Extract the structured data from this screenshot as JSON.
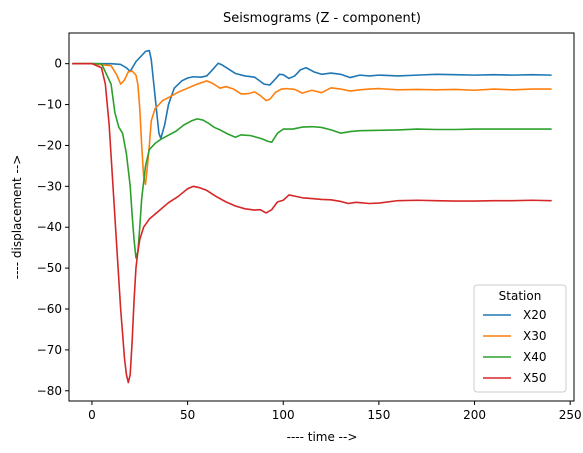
{
  "chart_data": {
    "type": "line",
    "title": "Seismograms (Z - component)",
    "xlabel": "---- time -->",
    "ylabel": "---- displacement -->",
    "xlim": [
      -12,
      252
    ],
    "ylim": [
      -82.5,
      7.5
    ],
    "xticks": [
      0,
      50,
      100,
      150,
      200,
      250
    ],
    "yticks": [
      0,
      -10,
      -20,
      -30,
      -40,
      -50,
      -60,
      -70,
      -80
    ],
    "grid": false,
    "legend": {
      "title": "Station",
      "placement": "lower-right"
    },
    "series": [
      {
        "name": "X20",
        "color": "#1f77b4",
        "x": [
          -10,
          0,
          10,
          15,
          18,
          20,
          23,
          26,
          28,
          30,
          31,
          33,
          35,
          36,
          38,
          40,
          43,
          47,
          50,
          53,
          57,
          60,
          63,
          66,
          68,
          71,
          75,
          80,
          85,
          90,
          93,
          96,
          98,
          100,
          103,
          106,
          109,
          112,
          116,
          120,
          125,
          130,
          135,
          140,
          145,
          150,
          160,
          170,
          180,
          190,
          200,
          210,
          220,
          230,
          240
        ],
        "y": [
          0,
          0,
          0,
          -0.2,
          -1,
          -1.9,
          0.5,
          2,
          3,
          3.2,
          1,
          -8,
          -17,
          -18.3,
          -15,
          -10,
          -6,
          -4.2,
          -3.5,
          -3.2,
          -3.3,
          -3,
          -1.5,
          0.1,
          -0.3,
          -1.2,
          -2.4,
          -3,
          -3.3,
          -5,
          -5.2,
          -3.7,
          -2.6,
          -2.7,
          -3.6,
          -3,
          -1.5,
          -1,
          -2,
          -2.6,
          -2.3,
          -2.6,
          -3.4,
          -2.8,
          -3,
          -2.8,
          -3,
          -2.8,
          -2.6,
          -2.7,
          -2.8,
          -2.7,
          -2.8,
          -2.7,
          -2.8
        ]
      },
      {
        "name": "X30",
        "color": "#ff7f0e",
        "x": [
          -10,
          0,
          10,
          13,
          15,
          17,
          19,
          21,
          23,
          24,
          25,
          26,
          27,
          28,
          29,
          30,
          31,
          33,
          35,
          37,
          40,
          45,
          50,
          55,
          60,
          63,
          67,
          70,
          74,
          78,
          82,
          85,
          88,
          91,
          93,
          96,
          99,
          102,
          106,
          110,
          115,
          120,
          125,
          130,
          135,
          140,
          145,
          150,
          160,
          170,
          180,
          190,
          200,
          210,
          220,
          230,
          240
        ],
        "y": [
          0,
          0,
          -0.5,
          -2.8,
          -5,
          -4,
          -2,
          -1.8,
          -2.8,
          -5,
          -11,
          -20,
          -27.5,
          -29.5,
          -25,
          -20,
          -14,
          -11,
          -10,
          -9,
          -8.3,
          -7,
          -6,
          -5,
          -4.2,
          -4.8,
          -6,
          -5.6,
          -6.2,
          -7.4,
          -7.3,
          -6.9,
          -7.8,
          -9,
          -8.7,
          -7,
          -6.2,
          -6.1,
          -6.3,
          -7.2,
          -6.5,
          -7.1,
          -5.9,
          -6.2,
          -6.7,
          -6.4,
          -6.2,
          -6.1,
          -6.4,
          -6.3,
          -6.4,
          -6.3,
          -6.5,
          -6.2,
          -6.4,
          -6.2,
          -6.2
        ]
      },
      {
        "name": "X40",
        "color": "#2ca02c",
        "x": [
          -10,
          0,
          5,
          10,
          12,
          14,
          16,
          18,
          20,
          21,
          22,
          23,
          24,
          25,
          26,
          28,
          30,
          33,
          36,
          40,
          44,
          48,
          52,
          55,
          58,
          61,
          64,
          67,
          71,
          75,
          78,
          80,
          83,
          86,
          89,
          92,
          94,
          97,
          100,
          105,
          110,
          115,
          120,
          125,
          130,
          135,
          140,
          150,
          160,
          170,
          180,
          190,
          200,
          210,
          220,
          230,
          240
        ],
        "y": [
          0,
          0,
          0,
          -5,
          -12,
          -15.5,
          -17,
          -22,
          -30,
          -37,
          -43,
          -47.5,
          -46,
          -40,
          -33,
          -25,
          -21,
          -19.5,
          -18.5,
          -17.5,
          -16.5,
          -15,
          -14,
          -13.5,
          -13.8,
          -14.6,
          -15.6,
          -16.2,
          -17.2,
          -18,
          -17.4,
          -17.5,
          -17.6,
          -18,
          -18.4,
          -19,
          -19.2,
          -17,
          -16,
          -16,
          -15.5,
          -15.4,
          -15.6,
          -16.2,
          -17,
          -16.6,
          -16.4,
          -16.3,
          -16.2,
          -16,
          -16.1,
          -16.1,
          -16,
          -16,
          -16,
          -16,
          -16
        ]
      },
      {
        "name": "X50",
        "color": "#d62728",
        "x": [
          -10,
          0,
          5,
          7,
          9,
          11,
          13,
          15,
          17,
          18,
          19,
          20,
          21,
          22,
          23,
          24,
          25,
          27,
          30,
          35,
          40,
          45,
          50,
          53,
          56,
          60,
          65,
          70,
          75,
          80,
          85,
          88,
          91,
          94,
          97,
          100,
          103,
          106,
          110,
          115,
          120,
          125,
          130,
          134,
          138,
          145,
          150,
          160,
          170,
          180,
          190,
          200,
          210,
          220,
          230,
          240
        ],
        "y": [
          0,
          0,
          -1,
          -5,
          -15,
          -30,
          -45,
          -60,
          -72,
          -76,
          -78,
          -76,
          -68,
          -58,
          -50,
          -46,
          -43,
          -40,
          -38,
          -36,
          -34,
          -32.5,
          -30.6,
          -30,
          -30.3,
          -31,
          -32.5,
          -33.8,
          -34.8,
          -35.5,
          -35.8,
          -35.7,
          -36.5,
          -35.7,
          -33.8,
          -33.4,
          -32.1,
          -32.4,
          -32.8,
          -33,
          -33.2,
          -33.3,
          -33.7,
          -34.2,
          -33.9,
          -34.2,
          -34.1,
          -33.5,
          -33.4,
          -33.5,
          -33.6,
          -33.6,
          -33.5,
          -33.5,
          -33.4,
          -33.5
        ]
      }
    ]
  }
}
